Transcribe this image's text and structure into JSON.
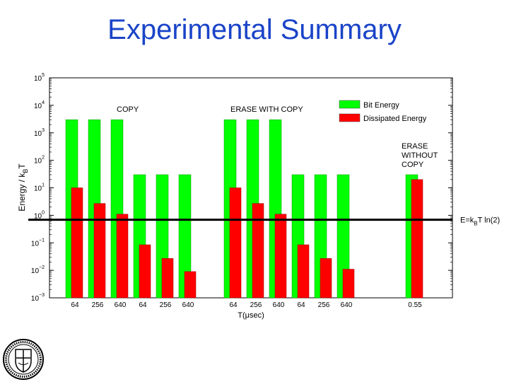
{
  "slide": {
    "title": "Experimental Summary"
  },
  "chart_data": {
    "type": "bar",
    "ylabel": "Energy / k_BT",
    "xlabel": "T(μsec)",
    "yscale": "log",
    "ylim": [
      0.001,
      100000
    ],
    "grid": false,
    "legend_position": "top-right",
    "categories": [
      "64",
      "256",
      "640",
      "64",
      "256",
      "640",
      "64",
      "256",
      "640",
      "64",
      "256",
      "640",
      "0.55"
    ],
    "series": [
      {
        "name": "Bit Energy",
        "color": "#00ff00",
        "values": [
          3000,
          3000,
          3000,
          30,
          30,
          30,
          3000,
          3000,
          3000,
          30,
          30,
          30,
          30
        ]
      },
      {
        "name": "Dissipated Energy",
        "color": "#ff0000",
        "values": [
          10,
          2.7,
          1.1,
          0.085,
          0.027,
          0.009,
          10,
          2.7,
          1.1,
          0.085,
          0.027,
          0.011,
          20
        ]
      }
    ],
    "groups": [
      "COPY",
      "ERASE WITH COPY",
      "ERASE\nWITHOUT\nCOPY"
    ],
    "reference_line": {
      "value": 0.693,
      "label_main": "E=k",
      "label_sub": "B",
      "label_rest": "T ln(2)",
      "color": "#000000"
    },
    "y_ticks": [
      {
        "value": 100000,
        "base": "10",
        "exp": "5"
      },
      {
        "value": 10000,
        "base": "10",
        "exp": "4"
      },
      {
        "value": 1000,
        "base": "10",
        "exp": "3"
      },
      {
        "value": 100,
        "base": "10",
        "exp": "2"
      },
      {
        "value": 10,
        "base": "10",
        "exp": "1"
      },
      {
        "value": 1,
        "base": "10",
        "exp": "0"
      },
      {
        "value": 0.1,
        "base": "10",
        "exp": "−1"
      },
      {
        "value": 0.01,
        "base": "10",
        "exp": "−2"
      },
      {
        "value": 0.001,
        "base": "10",
        "exp": "−3"
      }
    ]
  }
}
